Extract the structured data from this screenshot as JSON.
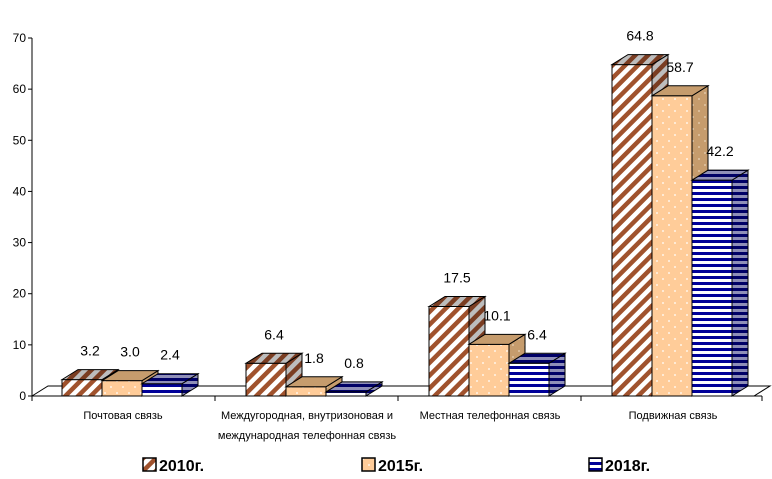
{
  "chart_data": {
    "type": "bar",
    "categories": [
      [
        "Почтовая связь"
      ],
      [
        "Междугородная, внутризоновая и",
        "международная телефонная связь"
      ],
      [
        "Местная телефонная связь"
      ],
      [
        "Подвижная связь"
      ]
    ],
    "series": [
      {
        "name": "2010г.",
        "values": [
          3.2,
          6.4,
          17.5,
          64.8
        ],
        "color": "#A0522D",
        "pattern": "diagonal-stripes"
      },
      {
        "name": "2015г.",
        "values": [
          3.0,
          1.8,
          10.1,
          58.7
        ],
        "color": "#FFCC99",
        "pattern": "dots"
      },
      {
        "name": "2018г.",
        "values": [
          2.4,
          0.8,
          6.4,
          42.2
        ],
        "color": "#000099",
        "pattern": "horizontal-stripes"
      }
    ],
    "value_labels": [
      [
        "3.2",
        "6.4",
        "17.5",
        "64.8"
      ],
      [
        "3.0",
        "1.8",
        "10.1",
        "58.7"
      ],
      [
        "2.4",
        "0.8",
        "6.4",
        "42.2"
      ]
    ],
    "yticks": [
      0,
      10,
      20,
      30,
      40,
      50,
      60,
      70
    ],
    "ylim": [
      0,
      70
    ],
    "grid": false,
    "legend_position": "bottom",
    "title": "",
    "xlabel": "",
    "ylabel": ""
  }
}
